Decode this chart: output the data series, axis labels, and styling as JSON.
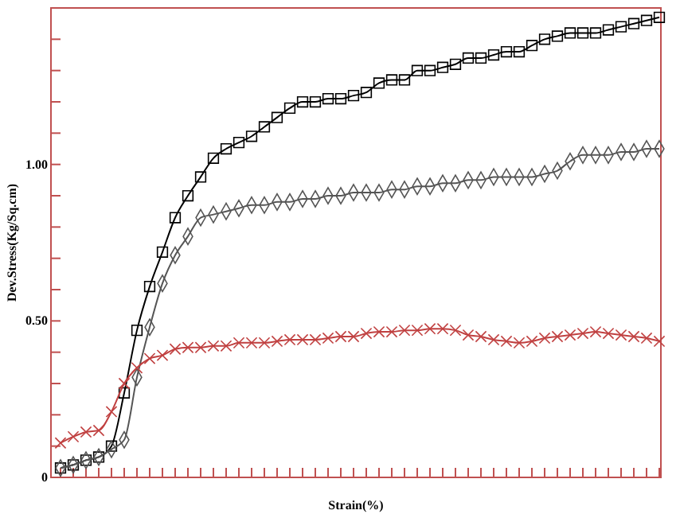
{
  "chart_data": {
    "type": "line",
    "xlabel": "Strain(%)",
    "ylabel": "Dev.Stress(Kg/Sq.cm)",
    "categories": [
      null,
      null,
      null,
      null,
      null,
      null,
      null,
      null,
      null,
      null,
      null,
      null,
      null,
      null,
      null,
      null,
      null,
      null,
      null,
      null,
      null,
      null,
      null,
      null,
      null,
      null,
      null,
      null,
      null,
      null,
      null,
      null,
      null,
      null,
      null,
      null,
      null,
      null,
      null,
      null,
      null,
      null,
      null,
      null,
      null,
      null,
      null,
      null
    ],
    "ylim": [
      0,
      1.5
    ],
    "yticks": [
      0,
      {
        "value": 0.1,
        "label": null
      },
      {
        "value": 0.2,
        "label": null
      },
      {
        "value": 0.3,
        "label": null
      },
      {
        "value": 0.4,
        "label": null
      },
      {
        "value": 0.5,
        "label": "0.50"
      },
      {
        "value": 0.6,
        "label": null
      },
      {
        "value": 0.7,
        "label": null
      },
      {
        "value": 0.8,
        "label": null
      },
      {
        "value": 0.9,
        "label": null
      },
      {
        "value": 1.0,
        "label": "1.00"
      },
      {
        "value": 1.1,
        "label": null
      },
      {
        "value": 1.2,
        "label": null
      },
      {
        "value": 1.3,
        "label": null
      },
      {
        "value": 1.4,
        "label": null
      }
    ],
    "tick_labels": "y",
    "grid": false,
    "line_style": "solid",
    "series": [
      {
        "color": "#000000",
        "marker": "square",
        "values": [
          0.03,
          0.04,
          0.055,
          0.065,
          0.1,
          0.27,
          0.47,
          0.61,
          0.72,
          0.83,
          0.9,
          0.96,
          1.02,
          1.05,
          1.07,
          1.09,
          1.12,
          1.15,
          1.18,
          1.2,
          1.2,
          1.21,
          1.21,
          1.22,
          1.23,
          1.26,
          1.27,
          1.27,
          1.3,
          1.3,
          1.31,
          1.32,
          1.34,
          1.34,
          1.35,
          1.36,
          1.36,
          1.38,
          1.4,
          1.41,
          1.42,
          1.42,
          1.42,
          1.43,
          1.44,
          1.45,
          1.46,
          1.47
        ]
      },
      {
        "color": "#555555",
        "marker": "diamond",
        "values": [
          0.03,
          0.04,
          0.055,
          0.065,
          0.09,
          0.12,
          0.32,
          0.48,
          0.62,
          0.71,
          0.77,
          0.83,
          0.84,
          0.85,
          0.86,
          0.87,
          0.87,
          0.88,
          0.88,
          0.89,
          0.89,
          0.9,
          0.9,
          0.91,
          0.91,
          0.91,
          0.92,
          0.92,
          0.93,
          0.93,
          0.94,
          0.94,
          0.95,
          0.95,
          0.96,
          0.96,
          0.96,
          0.96,
          0.97,
          0.98,
          1.01,
          1.03,
          1.03,
          1.03,
          1.04,
          1.04,
          1.05,
          1.05
        ]
      },
      {
        "color": "#c04040",
        "marker": "cross",
        "values": [
          0.11,
          0.13,
          0.145,
          0.15,
          0.21,
          0.3,
          0.35,
          0.38,
          0.39,
          0.41,
          0.415,
          0.415,
          0.42,
          0.42,
          0.43,
          0.43,
          0.43,
          0.435,
          0.44,
          0.44,
          0.44,
          0.445,
          0.45,
          0.45,
          0.46,
          0.465,
          0.465,
          0.47,
          0.47,
          0.475,
          0.475,
          0.47,
          0.455,
          0.45,
          0.44,
          0.435,
          0.43,
          0.435,
          0.445,
          0.45,
          0.455,
          0.46,
          0.465,
          0.46,
          0.455,
          0.45,
          0.445,
          0.435
        ]
      }
    ]
  }
}
